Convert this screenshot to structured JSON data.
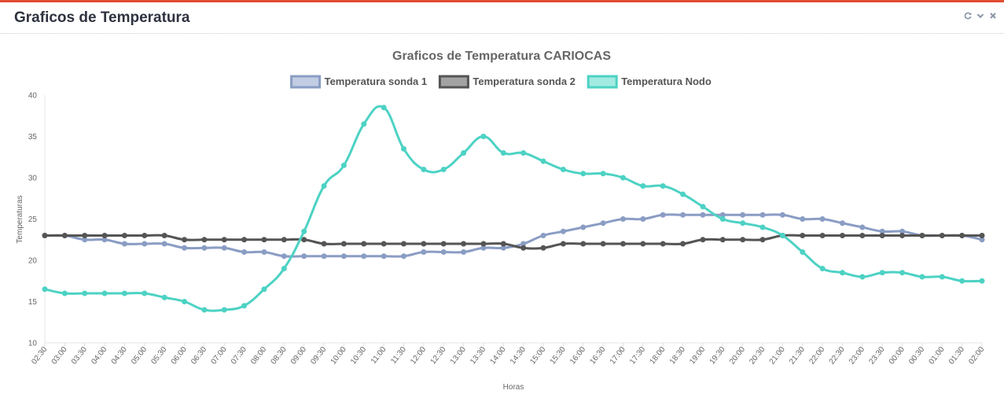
{
  "panel": {
    "title": "Graficos de Temperatura",
    "tools": [
      {
        "name": "refresh-icon",
        "glyph": "refresh"
      },
      {
        "name": "chevron-down-icon",
        "glyph": "chevron"
      },
      {
        "name": "close-icon",
        "glyph": "close"
      }
    ]
  },
  "colors": {
    "accent": "#e04b32",
    "sonda1": "#8a9dc4",
    "sonda1_fill": "#c2cde3",
    "sonda2": "#555555",
    "sonda2_fill": "#a3a3a3",
    "nodo": "#4dd2c4",
    "nodo_fill": "#a3ebe2"
  },
  "chart_data": {
    "type": "line",
    "title": "Graficos de Temperatura CARIOCAS",
    "xlabel": "Horas",
    "ylabel": "Temperaturas",
    "ylim": [
      10,
      40
    ],
    "yticks": [
      10,
      15,
      20,
      25,
      30,
      35,
      40
    ],
    "grid": false,
    "legend_position": "top-center",
    "x": [
      "02:30",
      "03:00",
      "03:30",
      "04:00",
      "04:30",
      "05:00",
      "05:30",
      "06:00",
      "06:30",
      "07:00",
      "07:30",
      "08:00",
      "08:30",
      "09:00",
      "09:30",
      "10:00",
      "10:30",
      "11:00",
      "11:30",
      "12:00",
      "12:30",
      "13:00",
      "13:30",
      "14:00",
      "14:30",
      "15:00",
      "15:30",
      "16:00",
      "16:30",
      "17:00",
      "17:30",
      "18:00",
      "18:30",
      "19:00",
      "19:30",
      "20:00",
      "20:30",
      "21:00",
      "21:30",
      "22:00",
      "22:30",
      "23:00",
      "23:30",
      "00:00",
      "00:30",
      "01:00",
      "01:30",
      "02:00"
    ],
    "series": [
      {
        "name": "Temperatura sonda 1",
        "values": [
          23,
          23,
          22.5,
          22.5,
          22,
          22,
          22,
          21.5,
          21.5,
          21.5,
          21,
          21,
          20.5,
          20.5,
          20.5,
          20.5,
          20.5,
          20.5,
          20.5,
          21,
          21,
          21,
          21.5,
          21.5,
          22,
          23,
          23.5,
          24,
          24.5,
          25,
          25,
          25.5,
          25.5,
          25.5,
          25.5,
          25.5,
          25.5,
          25.5,
          25,
          25,
          24.5,
          24,
          23.5,
          23.5,
          23,
          23,
          23,
          22.5
        ]
      },
      {
        "name": "Temperatura sonda 2",
        "values": [
          23,
          23,
          23,
          23,
          23,
          23,
          23,
          22.5,
          22.5,
          22.5,
          22.5,
          22.5,
          22.5,
          22.5,
          22,
          22,
          22,
          22,
          22,
          22,
          22,
          22,
          22,
          22,
          21.5,
          21.5,
          22,
          22,
          22,
          22,
          22,
          22,
          22,
          22.5,
          22.5,
          22.5,
          22.5,
          23,
          23,
          23,
          23,
          23,
          23,
          23,
          23,
          23,
          23,
          23
        ]
      },
      {
        "name": "Temperatura Nodo",
        "values": [
          16.5,
          16,
          16,
          16,
          16,
          16,
          15.5,
          15,
          14,
          14,
          14.5,
          16.5,
          19,
          23.5,
          29,
          31.5,
          36.5,
          38.5,
          33.5,
          31,
          31,
          33,
          35,
          33,
          33,
          32,
          31,
          30.5,
          30.5,
          30,
          29,
          29,
          28,
          26.5,
          25,
          24.5,
          24,
          23,
          21,
          19,
          18.5,
          18,
          18.5,
          18.5,
          18,
          18,
          17.5,
          17.5
        ]
      }
    ]
  }
}
